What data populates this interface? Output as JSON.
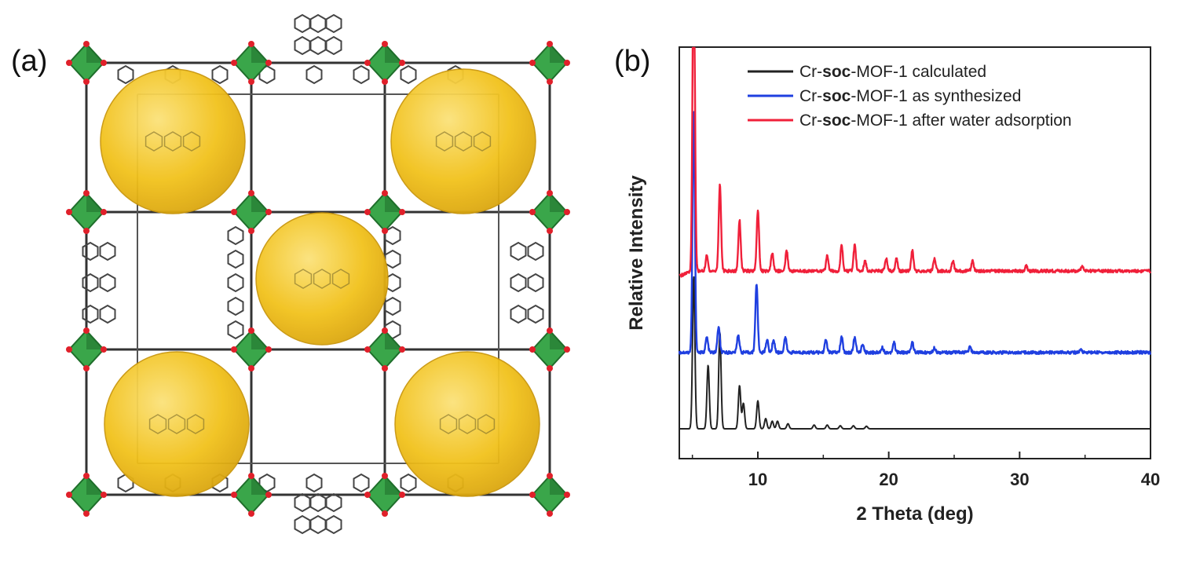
{
  "panel_a": {
    "label": "(a)",
    "colors": {
      "cluster": "#3aa64a",
      "cluster_dark": "#1f6e2b",
      "oxygen": "#e0202a",
      "linker": "#555555",
      "pore": "#f2c21c"
    }
  },
  "panel_b": {
    "label": "(b)"
  },
  "chart_data": {
    "type": "line",
    "xlabel": "2 Theta (deg)",
    "ylabel": "Relative Intensity",
    "xlim": [
      4,
      40
    ],
    "xticks": [
      10,
      20,
      30,
      40
    ],
    "y_ticks_shown": false,
    "legend_position": "top-right",
    "series": [
      {
        "name": "Cr-soc-MOF-1 calculated",
        "name_parts": [
          "Cr-",
          "soc",
          "-MOF-1 calculated"
        ],
        "color": "#222222",
        "baseline": 0.0,
        "peaks": [
          {
            "x": 5.1,
            "h": 0.6
          },
          {
            "x": 6.2,
            "h": 0.25
          },
          {
            "x": 7.1,
            "h": 0.38
          },
          {
            "x": 8.6,
            "h": 0.17
          },
          {
            "x": 8.9,
            "h": 0.1
          },
          {
            "x": 10.0,
            "h": 0.11
          },
          {
            "x": 10.6,
            "h": 0.04
          },
          {
            "x": 11.1,
            "h": 0.03
          },
          {
            "x": 11.5,
            "h": 0.03
          },
          {
            "x": 12.3,
            "h": 0.02
          },
          {
            "x": 14.3,
            "h": 0.015
          },
          {
            "x": 15.3,
            "h": 0.015
          },
          {
            "x": 16.3,
            "h": 0.012
          },
          {
            "x": 17.3,
            "h": 0.012
          },
          {
            "x": 18.3,
            "h": 0.01
          }
        ]
      },
      {
        "name": "Cr-soc-MOF-1  as synthesized",
        "name_parts": [
          "Cr-",
          "soc",
          "-MOF-1  as synthesized"
        ],
        "color": "#1f3fe0",
        "baseline": 0.3,
        "peaks": [
          {
            "x": 5.1,
            "h": 0.95
          },
          {
            "x": 6.1,
            "h": 0.06
          },
          {
            "x": 7.0,
            "h": 0.1
          },
          {
            "x": 8.5,
            "h": 0.07
          },
          {
            "x": 9.9,
            "h": 0.27
          },
          {
            "x": 10.7,
            "h": 0.05
          },
          {
            "x": 11.2,
            "h": 0.05
          },
          {
            "x": 12.1,
            "h": 0.06
          },
          {
            "x": 15.2,
            "h": 0.05
          },
          {
            "x": 16.4,
            "h": 0.06
          },
          {
            "x": 17.4,
            "h": 0.06
          },
          {
            "x": 18.0,
            "h": 0.03
          },
          {
            "x": 19.5,
            "h": 0.02
          },
          {
            "x": 20.4,
            "h": 0.04
          },
          {
            "x": 21.8,
            "h": 0.04
          },
          {
            "x": 23.5,
            "h": 0.02
          },
          {
            "x": 26.2,
            "h": 0.02
          },
          {
            "x": 34.7,
            "h": 0.01
          }
        ]
      },
      {
        "name": "Cr-soc-MOF-1  after water adsorption",
        "name_parts": [
          "Cr-",
          "soc",
          "-MOF-1  after water adsorption"
        ],
        "color": "#f0203a",
        "baseline": 0.62,
        "peaks": [
          {
            "x": 5.1,
            "h": 1.3
          },
          {
            "x": 6.1,
            "h": 0.06
          },
          {
            "x": 7.1,
            "h": 0.34
          },
          {
            "x": 8.6,
            "h": 0.2
          },
          {
            "x": 10.0,
            "h": 0.24
          },
          {
            "x": 11.1,
            "h": 0.07
          },
          {
            "x": 12.2,
            "h": 0.08
          },
          {
            "x": 15.3,
            "h": 0.06
          },
          {
            "x": 16.4,
            "h": 0.1
          },
          {
            "x": 17.4,
            "h": 0.1
          },
          {
            "x": 18.2,
            "h": 0.04
          },
          {
            "x": 19.8,
            "h": 0.05
          },
          {
            "x": 20.6,
            "h": 0.05
          },
          {
            "x": 21.8,
            "h": 0.08
          },
          {
            "x": 23.5,
            "h": 0.05
          },
          {
            "x": 24.9,
            "h": 0.04
          },
          {
            "x": 26.4,
            "h": 0.04
          },
          {
            "x": 30.5,
            "h": 0.02
          },
          {
            "x": 34.8,
            "h": 0.02
          }
        ]
      }
    ]
  }
}
